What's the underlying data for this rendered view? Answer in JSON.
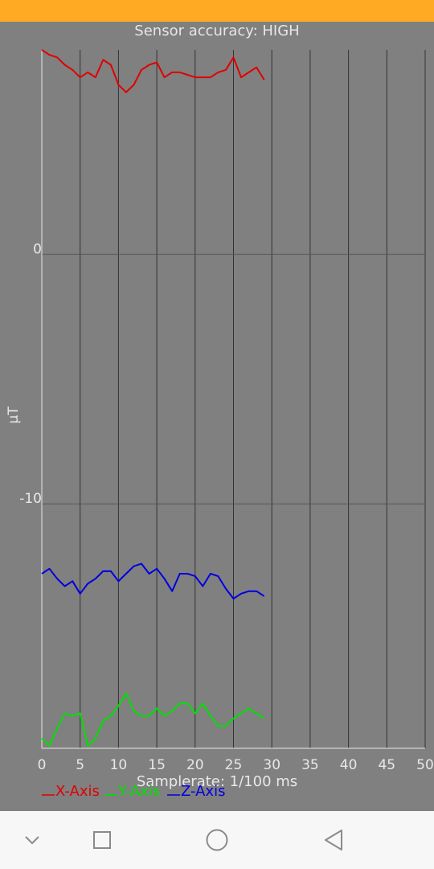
{
  "header": {
    "accuracy_text": "Sensor accuracy: HIGH"
  },
  "colors": {
    "status_bar": "#FFAA22",
    "background": "#808080",
    "x_axis": "#E00000",
    "y_axis": "#00E000",
    "z_axis": "#0000E0",
    "nav_bar": "#F7F7F7"
  },
  "chart_data": {
    "type": "line",
    "title": "",
    "xlabel": "Samplerate: 1/100 ms",
    "ylabel": "μT",
    "xlim": [
      0,
      50
    ],
    "ylim": [
      -19.8,
      8.2
    ],
    "x_ticks": [
      0,
      5,
      10,
      15,
      20,
      25,
      30,
      35,
      40,
      45,
      50
    ],
    "y_ticks": [
      0,
      -10
    ],
    "grid": true,
    "legend": "bottom-left",
    "series": [
      {
        "name": "X-Axis",
        "color": "#E00000",
        "x": [
          0,
          1,
          2,
          3,
          4,
          5,
          6,
          7,
          8,
          9,
          10,
          11,
          12,
          13,
          14,
          15,
          16,
          17,
          18,
          19,
          20,
          21,
          22,
          23,
          24,
          25,
          26,
          27,
          28,
          29
        ],
        "y": [
          8.2,
          8.0,
          7.9,
          7.6,
          7.4,
          7.1,
          7.3,
          7.1,
          7.8,
          7.6,
          6.8,
          6.5,
          6.8,
          7.4,
          7.6,
          7.7,
          7.1,
          7.3,
          7.3,
          7.2,
          7.1,
          7.1,
          7.1,
          7.3,
          7.4,
          7.9,
          7.1,
          7.3,
          7.5,
          7.0
        ]
      },
      {
        "name": "Y-Axis",
        "color": "#00E000",
        "x": [
          0,
          1,
          2,
          3,
          4,
          5,
          6,
          7,
          8,
          9,
          10,
          11,
          12,
          13,
          14,
          15,
          16,
          17,
          18,
          19,
          20,
          21,
          22,
          23,
          24,
          25,
          26,
          27,
          28,
          29
        ],
        "y": [
          -19.4,
          -19.7,
          -19.0,
          -18.4,
          -18.5,
          -18.4,
          -19.7,
          -19.4,
          -18.7,
          -18.5,
          -18.1,
          -17.6,
          -18.3,
          -18.5,
          -18.5,
          -18.2,
          -18.5,
          -18.3,
          -18.0,
          -18.0,
          -18.4,
          -18.0,
          -18.5,
          -18.9,
          -18.9,
          -18.6,
          -18.4,
          -18.2,
          -18.4,
          -18.6
        ]
      },
      {
        "name": "Z-Axis",
        "color": "#0000E0",
        "x": [
          0,
          1,
          2,
          3,
          4,
          5,
          6,
          7,
          8,
          9,
          10,
          11,
          12,
          13,
          14,
          15,
          16,
          17,
          18,
          19,
          20,
          21,
          22,
          23,
          24,
          25,
          26,
          27,
          28,
          29
        ],
        "y": [
          -12.8,
          -12.6,
          -13.0,
          -13.3,
          -13.1,
          -13.6,
          -13.2,
          -13.0,
          -12.7,
          -12.7,
          -13.1,
          -12.8,
          -12.5,
          -12.4,
          -12.8,
          -12.6,
          -13.0,
          -13.5,
          -12.8,
          -12.8,
          -12.9,
          -13.3,
          -12.8,
          -12.9,
          -13.4,
          -13.8,
          -13.6,
          -13.5,
          -13.5,
          -13.7
        ]
      }
    ]
  },
  "navbar": {
    "icons": [
      "chevron-down-icon",
      "square-icon",
      "circle-icon",
      "triangle-back-icon"
    ]
  }
}
